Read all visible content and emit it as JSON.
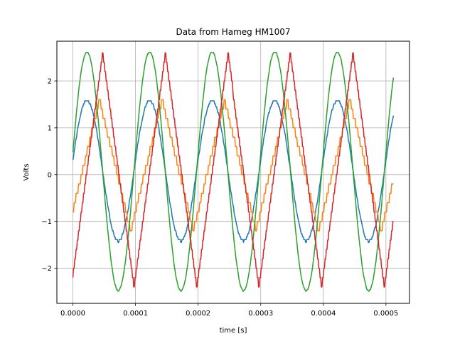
{
  "chart_data": {
    "type": "line",
    "title": "Data from Hameg HM1007",
    "xlabel": "time [s]",
    "ylabel": "Volts",
    "xlim": [
      -2.56e-05,
      0.0005376
    ],
    "ylim": [
      -2.75,
      2.85
    ],
    "grid": true,
    "x_ticks": [
      0.0,
      0.0001,
      0.0002,
      0.0003,
      0.0004,
      0.0005
    ],
    "x_tick_labels": [
      "0.0000",
      "0.0001",
      "0.0002",
      "0.0003",
      "0.0004",
      "0.0005"
    ],
    "y_ticks": [
      -2,
      -1,
      0,
      1,
      2
    ],
    "y_tick_labels": [
      "−2",
      "−1",
      "0",
      "1",
      "2"
    ],
    "x_range": [
      0.0,
      0.000512
    ],
    "series": [
      {
        "color": "#1f77b4",
        "form": "sine",
        "amplitude": 1.5,
        "offset": 0.08,
        "period": 0.0001,
        "peak_at": 2.25e-05,
        "quantization": 0.063
      },
      {
        "color": "#ff7f0e",
        "form": "triangle",
        "amplitude": 1.4,
        "offset": 0.2,
        "period": 0.0001,
        "peak_at": 4.25e-05,
        "quantization": 0.2
      },
      {
        "color": "#2ca02c",
        "form": "sine",
        "amplitude": 2.55,
        "offset": 0.07,
        "period": 0.0001,
        "peak_at": 2.25e-05,
        "quantization": 0.03
      },
      {
        "color": "#d62728",
        "form": "triangle",
        "amplitude": 2.5,
        "offset": 0.1,
        "period": 0.0001,
        "peak_at": 4.75e-05,
        "quantization": 0.2
      }
    ]
  }
}
